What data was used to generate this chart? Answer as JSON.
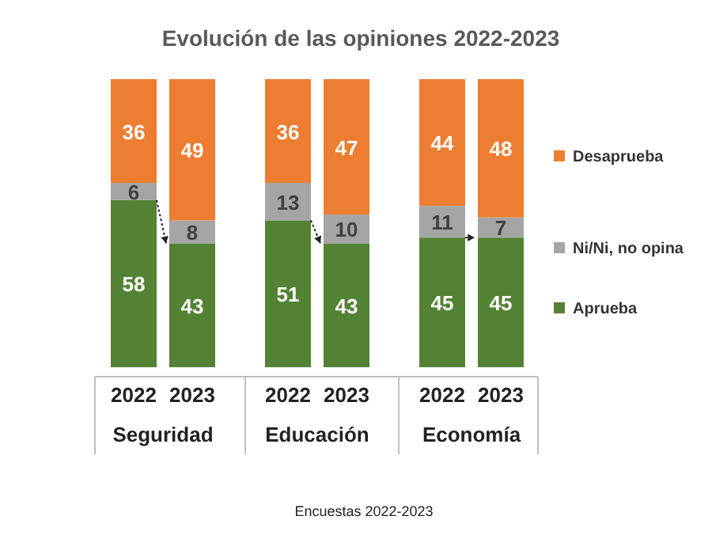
{
  "chart_data": {
    "type": "bar",
    "title": "Evolución de las opiniones 2022-2023",
    "categories": [
      "2022",
      "2023",
      "2022",
      "2023",
      "2022",
      "2023"
    ],
    "series": [
      {
        "name": "Aprueba",
        "color": "#548235",
        "values": [
          58,
          43,
          51,
          43,
          45,
          45
        ]
      },
      {
        "name": "Ni/Ni, no opina",
        "color": "#a5a5a5",
        "values": [
          6,
          8,
          13,
          10,
          11,
          7
        ]
      },
      {
        "name": "Desaprueba",
        "color": "#ed7d31",
        "values": [
          36,
          49,
          36,
          47,
          44,
          48
        ]
      }
    ],
    "stacked": true,
    "data_labels": true,
    "legend": "right",
    "annotations": [
      "Seguridad",
      "Educación",
      "Economía",
      "Encuestas 2022-2023"
    ]
  }
}
